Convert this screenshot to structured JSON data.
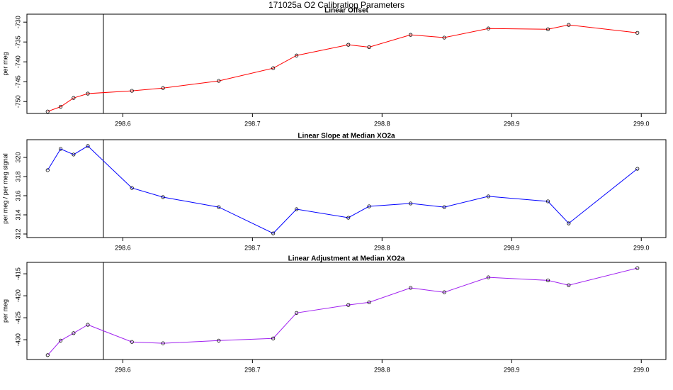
{
  "title": "171025a   O2 Calibration Parameters",
  "chart_data": [
    {
      "type": "line",
      "title": "Linear Offset",
      "y_label": "per meg",
      "x": [
        298.542,
        298.552,
        298.562,
        298.573,
        298.607,
        298.631,
        298.674,
        298.716,
        298.734,
        298.774,
        298.79,
        298.822,
        298.848,
        298.882,
        298.928,
        298.944,
        298.997
      ],
      "series": [
        {
          "color": "#ff0000",
          "values": [
            -752.5,
            -751.3,
            -749.1,
            -748.0,
            -747.3,
            -746.6,
            -744.8,
            -741.6,
            -738.4,
            -735.7,
            -736.3,
            -733.2,
            -733.9,
            -731.6,
            -731.8,
            -730.7,
            -732.7
          ]
        }
      ],
      "marker_color": "#000000",
      "vline": 298.585,
      "xlim": [
        298.526,
        299.019
      ],
      "xticks": [
        298.6,
        298.7,
        298.8,
        298.9,
        {
          "value": 299,
          "label": "299.0"
        }
      ],
      "ylim": [
        -753.0,
        -728.0
      ],
      "yticks": [
        -750,
        -745,
        -740,
        -735,
        -730
      ]
    },
    {
      "type": "line",
      "title": "Linear Slope at Median XO2a",
      "y_label": "per meg / per meg signal",
      "x": [
        298.542,
        298.552,
        298.562,
        298.573,
        298.607,
        298.631,
        298.674,
        298.716,
        298.734,
        298.774,
        298.79,
        298.822,
        298.848,
        298.882,
        298.928,
        298.944,
        298.997
      ],
      "series": [
        {
          "color": "#0000ff",
          "values": [
            318.67,
            320.89,
            320.3,
            321.19,
            316.81,
            315.85,
            314.81,
            312.07,
            314.59,
            313.7,
            314.89,
            315.19,
            314.81,
            315.93,
            315.41,
            313.11,
            318.81
          ]
        }
      ],
      "marker_color": "#000000",
      "vline": 298.585,
      "xlim": [
        298.526,
        299.019
      ],
      "xticks": [
        298.6,
        298.7,
        298.8,
        298.9,
        {
          "value": 299,
          "label": "299.0"
        }
      ],
      "ylim": [
        311.63,
        321.85
      ],
      "yticks": [
        312,
        314,
        316,
        318,
        320
      ]
    },
    {
      "type": "line",
      "title": "Linear Adjustment at Median XO2a",
      "y_label": "per meg",
      "x": [
        298.542,
        298.552,
        298.562,
        298.573,
        298.607,
        298.631,
        298.674,
        298.716,
        298.734,
        298.774,
        298.79,
        298.822,
        298.848,
        298.882,
        298.928,
        298.944,
        298.997
      ],
      "series": [
        {
          "color": "#a020f0",
          "values": [
            -433.5,
            -430.2,
            -428.5,
            -426.6,
            -430.5,
            -430.8,
            -430.2,
            -429.7,
            -423.9,
            -422.1,
            -421.5,
            -418.2,
            -419.2,
            -415.8,
            -416.5,
            -417.6,
            -413.7
          ]
        }
      ],
      "marker_color": "#000000",
      "vline": 298.585,
      "xlim": [
        298.526,
        299.019
      ],
      "xticks": [
        298.6,
        298.7,
        298.8,
        298.9,
        {
          "value": 299,
          "label": "299.0"
        }
      ],
      "ylim": [
        -434.5,
        -412.4
      ],
      "yticks": [
        -430,
        -425,
        -420,
        -415
      ]
    }
  ]
}
